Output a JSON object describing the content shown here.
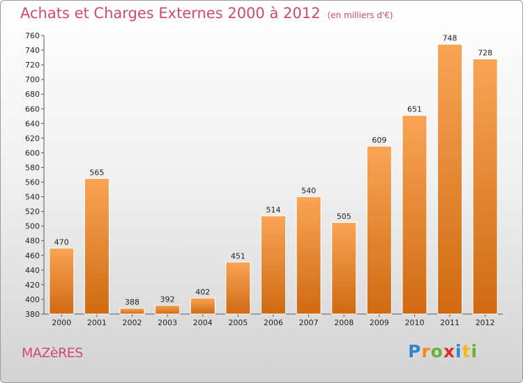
{
  "header": {
    "title": "Achats et Charges Externes 2000 à 2012",
    "subtitle": "(en milliers d'€)"
  },
  "footer": {
    "commune": "MAZèRES",
    "logo": {
      "text": "Proxiti",
      "letters": [
        {
          "ch": "P",
          "color": "#2f86c8"
        },
        {
          "ch": "r",
          "color": "#f08a1c"
        },
        {
          "ch": "o",
          "color": "#6ab232"
        },
        {
          "ch": "x",
          "color": "#e0282f"
        },
        {
          "ch": "i",
          "color": "#2f86c8"
        },
        {
          "ch": "t",
          "color": "#f0b81c"
        },
        {
          "ch": "i",
          "color": "#6ab232"
        }
      ]
    }
  },
  "chart_data": {
    "type": "bar",
    "title": "Achats et Charges Externes 2000 à 2012",
    "subtitle": "(en milliers d'€)",
    "categories": [
      "2000",
      "2001",
      "2002",
      "2003",
      "2004",
      "2005",
      "2006",
      "2007",
      "2008",
      "2009",
      "2010",
      "2011",
      "2012"
    ],
    "values": [
      470,
      565,
      388,
      392,
      402,
      451,
      514,
      540,
      505,
      609,
      651,
      748,
      728
    ],
    "ylim": [
      380,
      760
    ],
    "ystep": 20,
    "grid": false,
    "bar_color_top": "#f8a555",
    "bar_color_bottom": "#d06a12"
  }
}
